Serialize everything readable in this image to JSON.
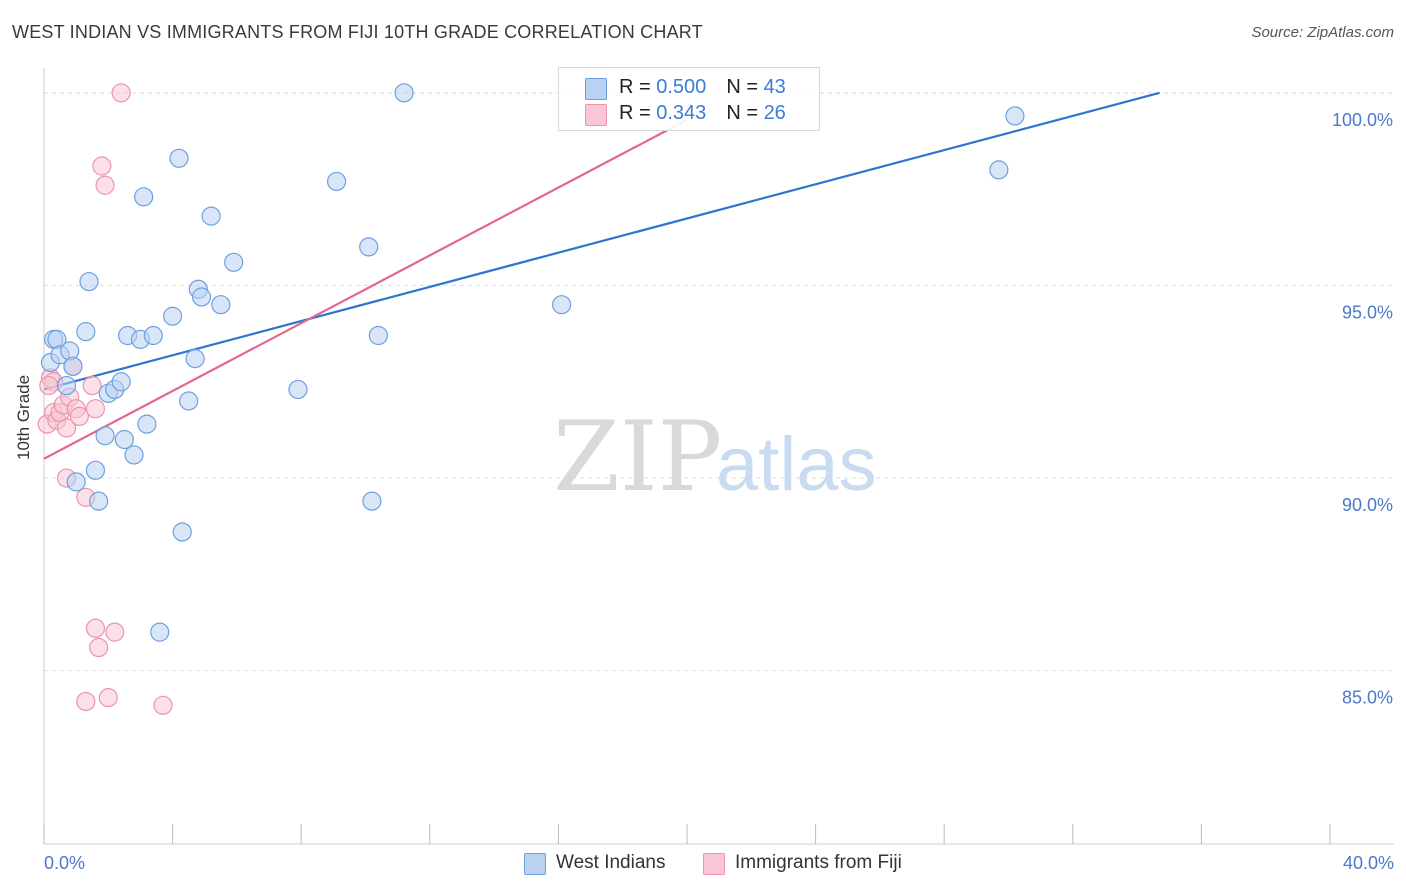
{
  "title": "WEST INDIAN VS IMMIGRANTS FROM FIJI 10TH GRADE CORRELATION CHART",
  "source": "Source: ZipAtlas.com",
  "watermark": {
    "zip": "ZIP",
    "atlas": "atlas"
  },
  "colors": {
    "blue_fill": "#b9d2f2",
    "blue_stroke": "#6f9fe0",
    "blue_line": "#2e74d0",
    "pink_fill": "#f8c6d4",
    "pink_stroke": "#ec93ad",
    "pink_line": "#e2668f",
    "grid": "#dddddd",
    "tick_text": "#4a7ac9"
  },
  "legend_top": [
    {
      "r_label": "R = ",
      "r_value": "0.500",
      "n_label": "N = ",
      "n_value": "43"
    },
    {
      "r_label": "R = ",
      "r_value": "0.343",
      "n_label": "N = ",
      "n_value": "26"
    }
  ],
  "legend_bottom": [
    "West Indians",
    "Immigrants from Fiji"
  ],
  "chart_data": {
    "type": "scatter",
    "title": "WEST INDIAN VS IMMIGRANTS FROM FIJI 10TH GRADE CORRELATION CHART",
    "xlabel": "",
    "ylabel": "10th Grade",
    "xlim": [
      0,
      40
    ],
    "ylim": [
      80.5,
      100.8
    ],
    "x_tick_labels": [
      "0.0%",
      "40.0%"
    ],
    "y_ticks": [
      85,
      90,
      95,
      100
    ],
    "y_tick_labels": [
      "85.0%",
      "90.0%",
      "95.0%",
      "100.0%"
    ],
    "grid": true,
    "series": [
      {
        "name": "West Indians",
        "R": 0.5,
        "N": 43,
        "trend": {
          "x": [
            0,
            34.7
          ],
          "y": [
            92.3,
            100.0
          ]
        },
        "points": [
          [
            0.2,
            93.0
          ],
          [
            0.3,
            93.6
          ],
          [
            0.4,
            93.6
          ],
          [
            0.5,
            93.2
          ],
          [
            0.7,
            92.4
          ],
          [
            0.8,
            93.3
          ],
          [
            0.9,
            92.9
          ],
          [
            1.0,
            89.9
          ],
          [
            1.3,
            93.8
          ],
          [
            1.4,
            95.1
          ],
          [
            1.6,
            90.2
          ],
          [
            1.7,
            89.4
          ],
          [
            1.9,
            91.1
          ],
          [
            2.0,
            92.2
          ],
          [
            2.2,
            92.3
          ],
          [
            2.4,
            92.5
          ],
          [
            2.5,
            91.0
          ],
          [
            2.6,
            93.7
          ],
          [
            2.8,
            90.6
          ],
          [
            3.0,
            93.6
          ],
          [
            3.1,
            97.3
          ],
          [
            3.2,
            91.4
          ],
          [
            3.4,
            93.7
          ],
          [
            3.6,
            86.0
          ],
          [
            4.0,
            94.2
          ],
          [
            4.2,
            98.3
          ],
          [
            4.3,
            88.6
          ],
          [
            4.5,
            92.0
          ],
          [
            4.7,
            93.1
          ],
          [
            4.8,
            94.9
          ],
          [
            4.9,
            94.7
          ],
          [
            5.2,
            96.8
          ],
          [
            5.5,
            94.5
          ],
          [
            5.9,
            95.6
          ],
          [
            7.9,
            92.3
          ],
          [
            9.1,
            97.7
          ],
          [
            10.1,
            96.0
          ],
          [
            10.2,
            89.4
          ],
          [
            10.4,
            93.7
          ],
          [
            11.2,
            100.0
          ],
          [
            16.1,
            94.5
          ],
          [
            29.7,
            98.0
          ],
          [
            30.2,
            99.4
          ]
        ]
      },
      {
        "name": "Immigrants from Fiji",
        "R": 0.343,
        "N": 26,
        "trend": {
          "x": [
            0,
            20.0
          ],
          "y": [
            90.5,
            99.3
          ]
        },
        "points": [
          [
            0.1,
            91.4
          ],
          [
            0.2,
            92.6
          ],
          [
            0.3,
            92.5
          ],
          [
            0.3,
            91.7
          ],
          [
            0.4,
            91.5
          ],
          [
            0.5,
            91.7
          ],
          [
            0.6,
            91.9
          ],
          [
            0.7,
            90.0
          ],
          [
            0.7,
            91.3
          ],
          [
            0.8,
            92.1
          ],
          [
            0.9,
            92.9
          ],
          [
            1.0,
            91.8
          ],
          [
            1.1,
            91.6
          ],
          [
            1.3,
            89.5
          ],
          [
            1.3,
            84.2
          ],
          [
            1.5,
            92.4
          ],
          [
            1.6,
            91.8
          ],
          [
            1.6,
            86.1
          ],
          [
            1.7,
            85.6
          ],
          [
            1.8,
            98.1
          ],
          [
            1.9,
            97.6
          ],
          [
            2.0,
            84.3
          ],
          [
            2.2,
            86.0
          ],
          [
            2.4,
            100.0
          ],
          [
            3.7,
            84.1
          ],
          [
            0.15,
            92.4
          ]
        ]
      }
    ]
  }
}
